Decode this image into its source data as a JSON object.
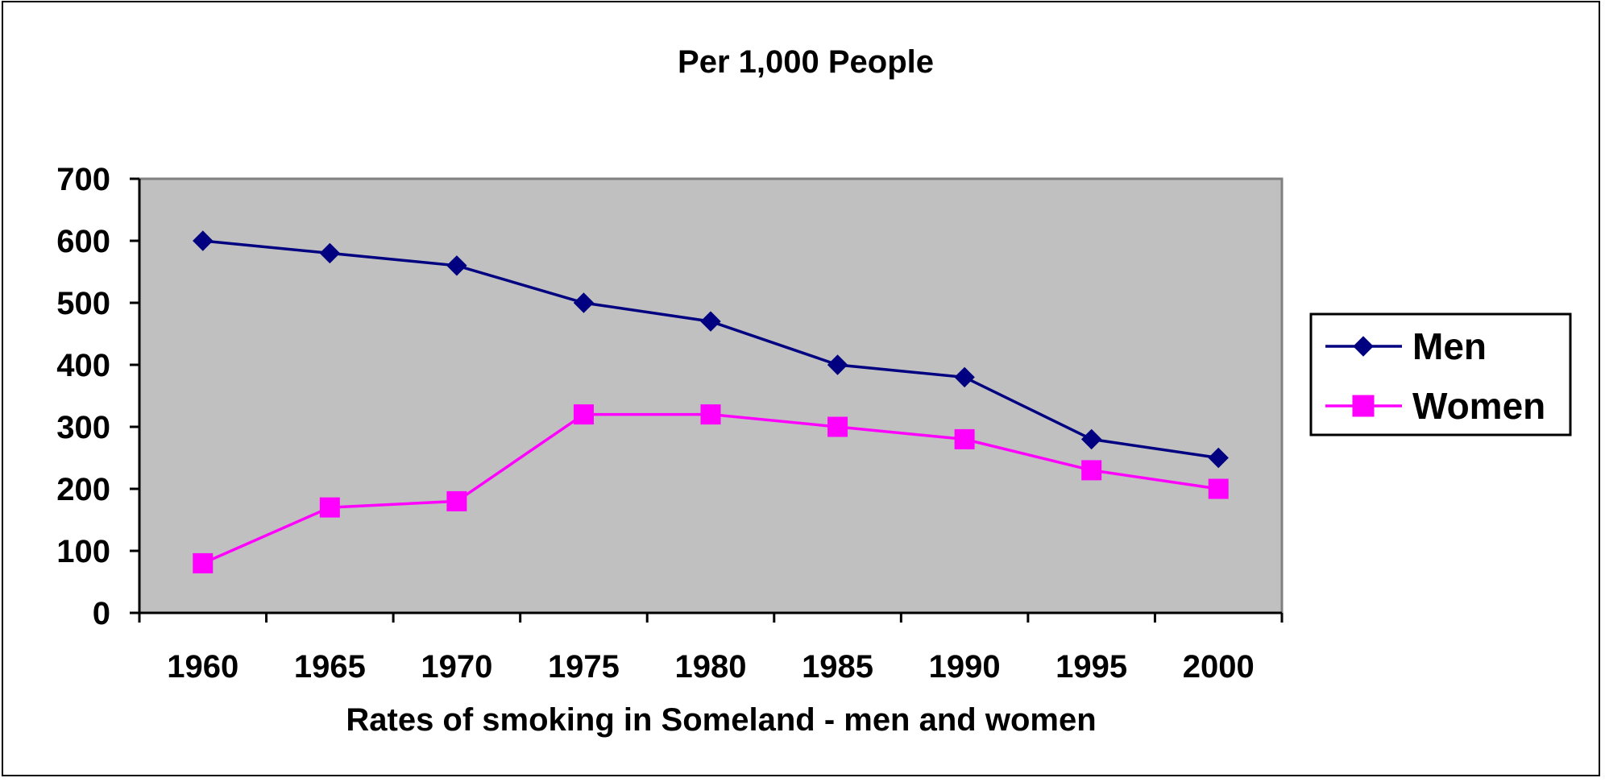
{
  "chart_data": {
    "type": "line",
    "title": "Per 1,000 People",
    "xlabel": "Rates of smoking in Someland - men and women",
    "ylabel": "",
    "categories": [
      "1960",
      "1965",
      "1970",
      "1975",
      "1980",
      "1985",
      "1990",
      "1995",
      "2000"
    ],
    "ylim": [
      0,
      700
    ],
    "yticks": [
      "0",
      "100",
      "200",
      "300",
      "400",
      "500",
      "600",
      "700"
    ],
    "grid": false,
    "plot_background": "#c0c0c0",
    "legend_position": "right",
    "series": [
      {
        "name": "Men",
        "marker": "diamond",
        "color": "#000080",
        "values": [
          600,
          580,
          560,
          500,
          470,
          400,
          380,
          280,
          250
        ]
      },
      {
        "name": "Women",
        "marker": "square",
        "color": "#ff00ff",
        "values": [
          80,
          170,
          180,
          320,
          320,
          300,
          280,
          230,
          200
        ]
      }
    ]
  }
}
